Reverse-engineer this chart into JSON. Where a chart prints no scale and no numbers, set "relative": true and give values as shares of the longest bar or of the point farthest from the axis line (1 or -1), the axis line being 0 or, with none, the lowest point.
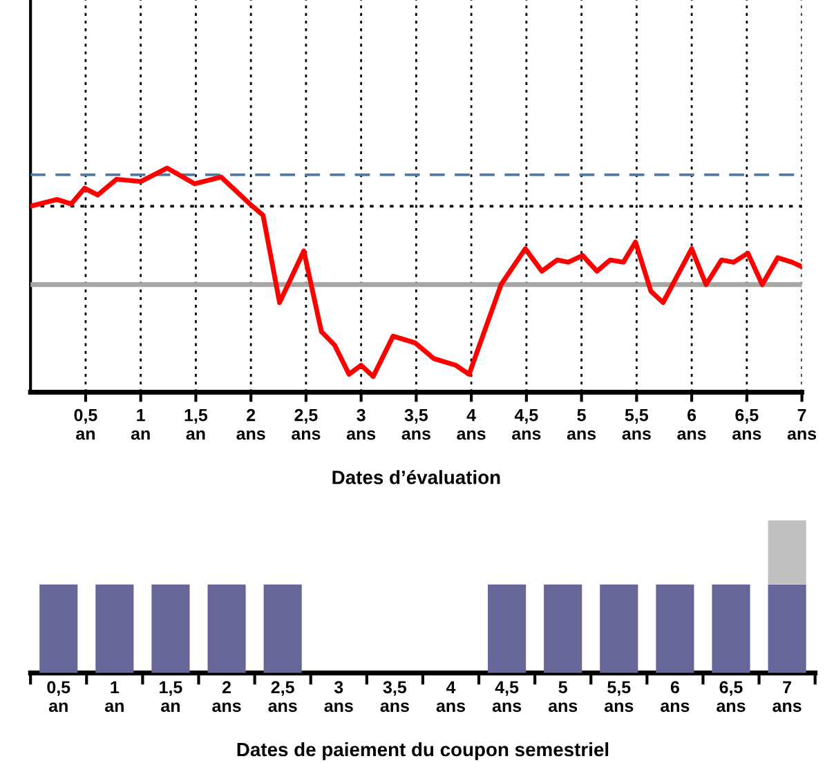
{
  "chart_data": [
    {
      "type": "line",
      "relative": true,
      "xlabel": "Dates d’évaluation",
      "grid": "x",
      "legend": false,
      "marker": "none",
      "line_style": "solid",
      "x": [
        0,
        0.24,
        0.37,
        0.49,
        0.61,
        0.78,
        1.0,
        1.24,
        1.49,
        1.73,
        1.99,
        2.11,
        2.26,
        2.48,
        2.64,
        2.76,
        2.89,
        3.0,
        3.11,
        3.29,
        3.49,
        3.66,
        3.86,
        3.98,
        4.27,
        4.49,
        4.64,
        4.78,
        4.88,
        5.01,
        5.14,
        5.26,
        5.38,
        5.49,
        5.63,
        5.74,
        6.0,
        6.13,
        6.27,
        6.38,
        6.51,
        6.64,
        6.78,
        6.91,
        7.0
      ],
      "series": [
        {
          "color": "#ff0000",
          "values": [
            0.83,
            0.86,
            0.84,
            0.91,
            0.88,
            0.95,
            0.94,
            1.0,
            0.93,
            0.96,
            0.84,
            0.79,
            0.4,
            0.63,
            0.27,
            0.21,
            0.08,
            0.12,
            0.07,
            0.25,
            0.22,
            0.15,
            0.12,
            0.08,
            0.48,
            0.64,
            0.54,
            0.59,
            0.58,
            0.61,
            0.54,
            0.59,
            0.58,
            0.67,
            0.45,
            0.4,
            0.64,
            0.48,
            0.59,
            0.58,
            0.62,
            0.48,
            0.6,
            0.58,
            0.56
          ]
        }
      ],
      "xlim": [
        0,
        7
      ],
      "xticks": [
        {
          "value": 0.5,
          "label": "0,5\nan"
        },
        {
          "value": 1,
          "label": "1\nan"
        },
        {
          "value": 1.5,
          "label": "1,5\nan"
        },
        {
          "value": 2,
          "label": "2\nans"
        },
        {
          "value": 2.5,
          "label": "2,5\nans"
        },
        {
          "value": 3,
          "label": "3\nans"
        },
        {
          "value": 3.5,
          "label": "3,5\nans"
        },
        {
          "value": 4,
          "label": "4\nans"
        },
        {
          "value": 4.5,
          "label": "4,5\nans"
        },
        {
          "value": 5,
          "label": "5\nans"
        },
        {
          "value": 5.5,
          "label": "5,5\nans"
        },
        {
          "value": 6,
          "label": "6\nans"
        },
        {
          "value": 6.5,
          "label": "6,5\nans"
        },
        {
          "value": 7,
          "label": "7\nans"
        }
      ],
      "ref_lines": [
        {
          "axis": "y",
          "value": 0.97,
          "color": "#4f7aa8",
          "line_style": "dashed"
        },
        {
          "axis": "y",
          "value": 0.83,
          "color": "#000000",
          "line_style": "dotted"
        },
        {
          "axis": "y",
          "value": 0.48,
          "color": "#a6a6a6",
          "line_style": "solid"
        }
      ]
    },
    {
      "type": "bar",
      "relative": true,
      "stacked": true,
      "xlabel": "Dates de paiement du coupon semestriel",
      "grid": false,
      "legend": false,
      "categories": [
        "0,5\nan",
        "1\nan",
        "1,5\nan",
        "2\nans",
        "2,5\nans",
        "3\nans",
        "3,5\nans",
        "4\nans",
        "4,5\nans",
        "5\nans",
        "5,5\nans",
        "6\nans",
        "6,5\nans",
        "7\nans"
      ],
      "series": [
        {
          "color": "#666699",
          "values": [
            0.58,
            0.58,
            0.58,
            0.58,
            0.58,
            null,
            null,
            null,
            0.58,
            0.58,
            0.58,
            0.58,
            0.58,
            0.58
          ]
        },
        {
          "color": "#c0c0c0",
          "values": [
            null,
            null,
            null,
            null,
            null,
            null,
            null,
            null,
            null,
            null,
            null,
            null,
            null,
            0.42
          ]
        }
      ]
    }
  ]
}
